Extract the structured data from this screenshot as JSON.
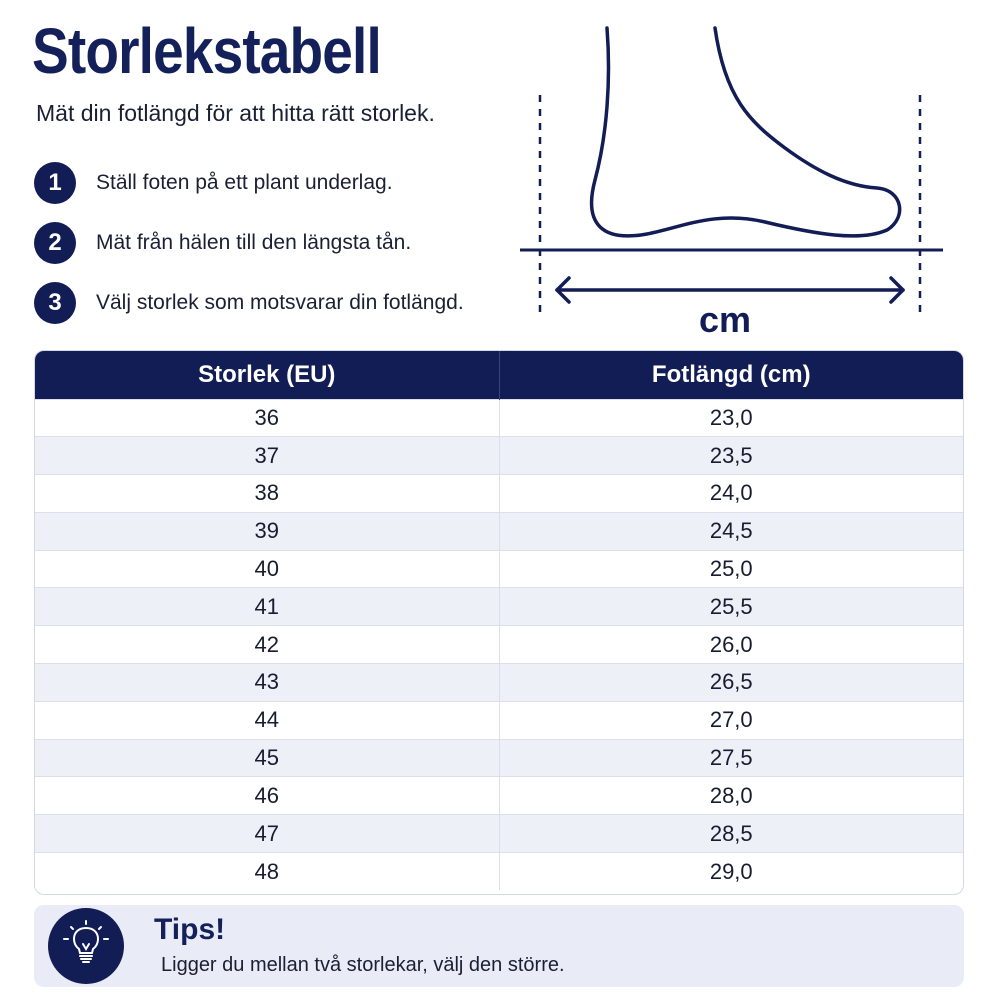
{
  "title": "Storlekstabell",
  "subtitle": "Mät din fotlängd för att hitta rätt storlek.",
  "steps": [
    {
      "number": "1",
      "text": "Ställ foten på ett plant underlag."
    },
    {
      "number": "2",
      "text": "Mät från hälen till den längsta tån."
    },
    {
      "number": "3",
      "text": "Välj storlek som motsvarar din fotlängd."
    }
  ],
  "diagram": {
    "unit_label": "cm",
    "icon": "foot-outline-icon"
  },
  "table": {
    "headers": [
      "Storlek (EU)",
      "Fotlängd (cm)"
    ],
    "rows": [
      [
        "36",
        "23,0"
      ],
      [
        "37",
        "23,5"
      ],
      [
        "38",
        "24,0"
      ],
      [
        "39",
        "24,5"
      ],
      [
        "40",
        "25,0"
      ],
      [
        "41",
        "25,5"
      ],
      [
        "42",
        "26,0"
      ],
      [
        "43",
        "26,5"
      ],
      [
        "44",
        "27,0"
      ],
      [
        "45",
        "27,5"
      ],
      [
        "46",
        "28,0"
      ],
      [
        "47",
        "28,5"
      ],
      [
        "48",
        "29,0"
      ]
    ]
  },
  "tip": {
    "icon": "lightbulb-icon",
    "title": "Tips!",
    "text": "Ligger du mellan två storlekar, välj den större."
  },
  "colors": {
    "primary": "#121d55",
    "row_alt": "#eef0f8",
    "tip_bg": "#e9ebf7"
  }
}
